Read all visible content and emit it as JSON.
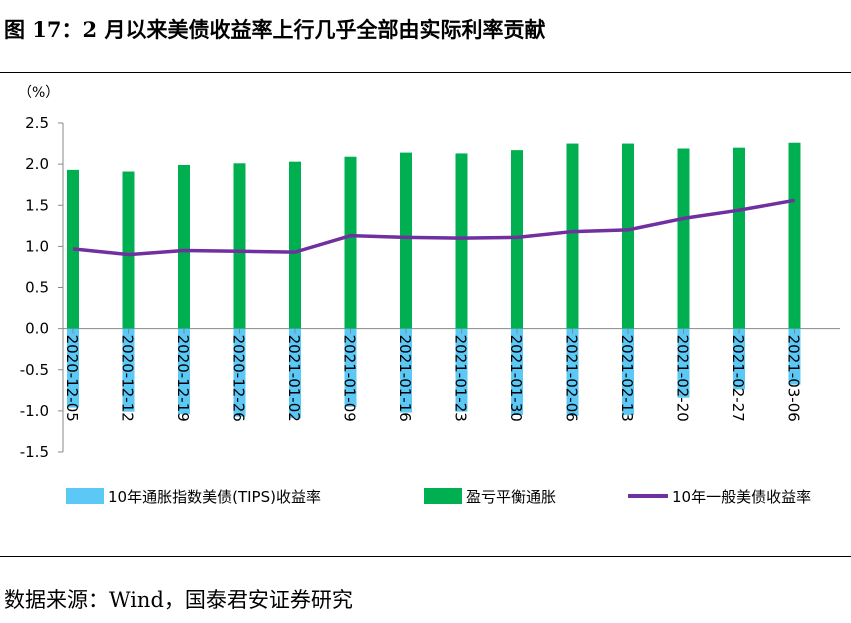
{
  "header": {
    "title": "图 17：2 月以来美债收益率上行几乎全部由实际利率贡献"
  },
  "footer": {
    "source": "数据来源：Wind，国泰君安证券研究"
  },
  "chart_data": {
    "type": "bar",
    "unit_label": "（%）",
    "categories": [
      "2020-12-05",
      "2020-12-12",
      "2020-12-19",
      "2020-12-26",
      "2021-01-02",
      "2021-01-09",
      "2021-01-16",
      "2021-01-23",
      "2021-01-30",
      "2021-02-06",
      "2021-02-13",
      "2021-02-20",
      "2021-02-27",
      "2021-03-06"
    ],
    "series": [
      {
        "name": "10年通胀指数美债(TIPS)收益率",
        "kind": "bar",
        "color": "#5bc8f5",
        "values": [
          -0.96,
          -1.01,
          -1.04,
          -1.07,
          -1.09,
          -0.95,
          -1.02,
          -1.01,
          -1.05,
          -1.06,
          -1.05,
          -0.84,
          -0.74,
          -0.68
        ]
      },
      {
        "name": "盈亏平衡通胀",
        "kind": "bar",
        "color": "#00b050",
        "values": [
          1.93,
          1.91,
          1.99,
          2.01,
          2.03,
          2.09,
          2.14,
          2.13,
          2.17,
          2.25,
          2.25,
          2.19,
          2.2,
          2.26
        ]
      },
      {
        "name": "10年一般美债收益率",
        "kind": "line",
        "color": "#7030a0",
        "values": [
          0.97,
          0.9,
          0.95,
          0.94,
          0.93,
          1.13,
          1.11,
          1.1,
          1.11,
          1.18,
          1.2,
          1.34,
          1.44,
          1.56
        ]
      }
    ],
    "ylim": [
      -1.5,
      2.5
    ],
    "yticks": [
      "2.5",
      "2.0",
      "1.5",
      "1.0",
      "0.5",
      "0.0",
      "-0.5",
      "-1.0",
      "-1.5"
    ],
    "grid": false,
    "legend_position": "bottom"
  }
}
